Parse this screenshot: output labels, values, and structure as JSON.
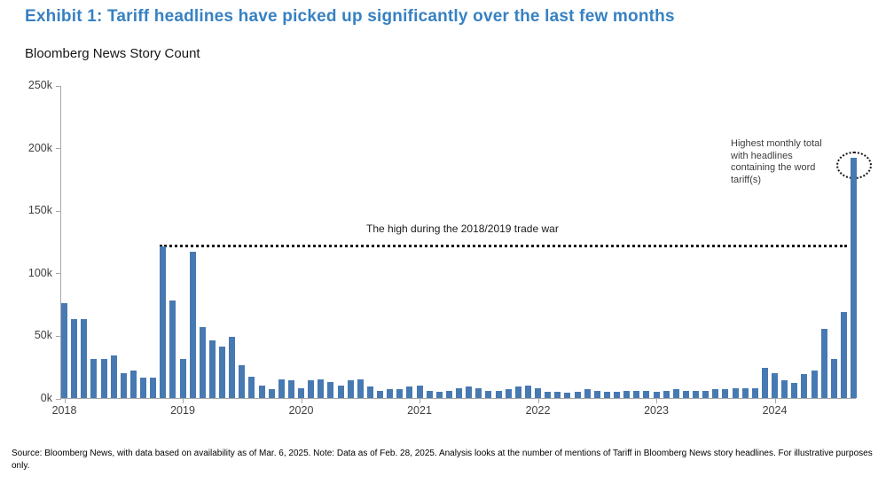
{
  "header": {
    "title": "Exhibit 1: Tariff headlines have picked up significantly over the last few months",
    "subtitle": "Bloomberg News Story Count"
  },
  "chart_data": {
    "type": "bar",
    "title": "Bloomberg News Story Count",
    "x_unit": "month",
    "y_unit": "stories (thousands)",
    "ylim": [
      0,
      250
    ],
    "grid": false,
    "bar_color": "#4779b2",
    "axis_color": "#a8a8a8",
    "title_color": "#3781c2",
    "y_ticks": [
      {
        "label": "0k",
        "value": 0
      },
      {
        "label": "50k",
        "value": 50
      },
      {
        "label": "100k",
        "value": 100
      },
      {
        "label": "150k",
        "value": 150
      },
      {
        "label": "200k",
        "value": 200
      },
      {
        "label": "250k",
        "value": 250
      }
    ],
    "x_ticks": [
      {
        "label": "2018",
        "index": 0
      },
      {
        "label": "2019",
        "index": 12
      },
      {
        "label": "2020",
        "index": 24
      },
      {
        "label": "2021",
        "index": 36
      },
      {
        "label": "2022",
        "index": 48
      },
      {
        "label": "2023",
        "index": 60
      },
      {
        "label": "2024",
        "index": 72
      }
    ],
    "values_thousands": [
      76,
      63,
      63,
      31,
      31,
      34,
      20,
      22,
      16,
      16,
      121,
      78,
      31,
      117,
      57,
      46,
      41,
      49,
      26,
      17,
      10,
      7,
      15,
      14,
      8,
      14,
      15,
      13,
      10,
      14,
      15,
      9,
      6,
      7,
      7,
      9,
      10,
      6,
      5,
      6,
      8,
      9,
      8,
      6,
      6,
      7,
      9,
      10,
      8,
      5,
      5,
      4,
      5,
      7,
      6,
      5,
      5,
      6,
      6,
      6,
      5,
      6,
      7,
      6,
      6,
      6,
      7,
      7,
      8,
      8,
      8,
      24,
      20,
      14,
      12,
      19,
      22,
      55,
      31,
      69,
      192
    ],
    "reference_line": {
      "value_thousands": 123,
      "label": "The high during the 2018/2019 trade war",
      "start_index": 10,
      "end_index": 79
    },
    "callout": {
      "text": "Highest monthly total\nwith headlines\ncontaining the word\ntariff(s)",
      "target_index": 80,
      "target_value_thousands": 192
    }
  },
  "footnote": {
    "text": "Source: Bloomberg News, with data based on availability as of Mar. 6, 2025. Note: Data as of Feb. 28, 2025. Analysis looks at the number of mentions of Tariff in Bloomberg News story headlines. For illustrative purposes only."
  }
}
